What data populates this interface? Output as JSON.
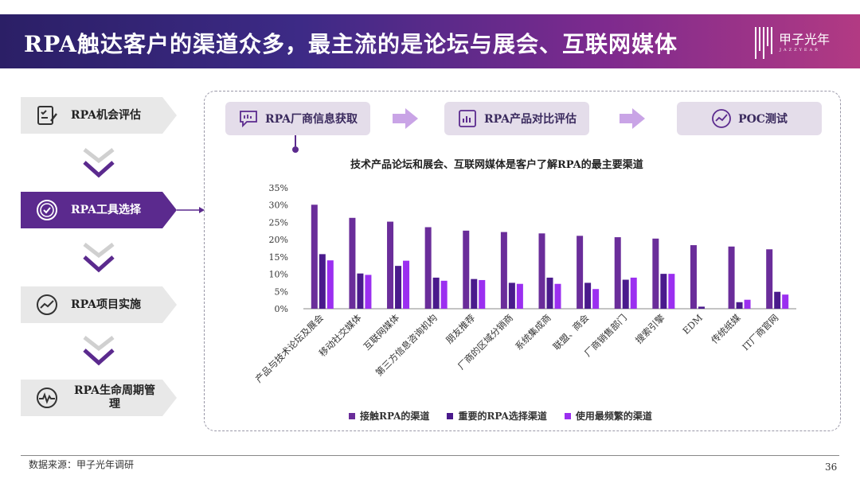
{
  "header": {
    "title": "RPA触达客户的渠道众多，最主流的是论坛与展会、互联网媒体",
    "logo_text": "甲子光年",
    "logo_sub": "JAZZYEAR"
  },
  "steps": [
    {
      "label": "RPA机会评估",
      "icon": "checklist-edit-icon",
      "active": false
    },
    {
      "label": "RPA工具选择",
      "icon": "check-circle-icon",
      "active": true
    },
    {
      "label": "RPA项目实施",
      "icon": "trend-line-icon",
      "active": false
    },
    {
      "label": "RPA生命周期管理",
      "icon": "heartbeat-icon",
      "active": false
    }
  ],
  "flow": [
    {
      "label": "RPA厂商信息获取",
      "icon": "chat-list-icon"
    },
    {
      "label": "RPA产品对比评估",
      "icon": "bar-report-icon"
    },
    {
      "label": "POC测试",
      "icon": "trend-circle-icon"
    }
  ],
  "colors": {
    "series1": "#6a2d9a",
    "series2": "#4a1a8c",
    "series3": "#9b2ff0",
    "accent": "#5b2a8e",
    "flow_tile": "#e4ddea",
    "flow_arrow": "#c9a4e6"
  },
  "chart_data": {
    "type": "bar",
    "title": "技术产品论坛和展会、互联网媒体是客户了解RPA的最主要渠道",
    "categories": [
      "产品与技术论坛及展会",
      "移动社交媒体",
      "互联网媒体",
      "第三方信息咨询机构",
      "朋友推荐",
      "厂商的区域分销商",
      "系统集成商",
      "联盟、商会",
      "厂商销售部门",
      "搜索引擎",
      "EDM",
      "传统纸媒",
      "IT厂商官网"
    ],
    "series": [
      {
        "name": "接触RPA的渠道",
        "values": [
          30.1,
          26.3,
          25.2,
          23.6,
          22.6,
          22.2,
          21.8,
          21.1,
          20.7,
          20.3,
          18.4,
          18.0,
          17.2
        ]
      },
      {
        "name": "重要的RPA选择渠道",
        "values": [
          15.8,
          10.2,
          12.4,
          9.0,
          8.6,
          7.5,
          9.0,
          7.5,
          8.4,
          10.1,
          0.6,
          1.9,
          4.9
        ]
      },
      {
        "name": "使用最频繁的渠道",
        "values": [
          14.0,
          9.8,
          13.9,
          8.1,
          8.3,
          7.2,
          7.2,
          5.7,
          9.0,
          10.1,
          0,
          2.6,
          4.1
        ]
      }
    ],
    "yticks": [
      "0%",
      "5%",
      "10%",
      "15%",
      "20%",
      "25%",
      "30%",
      "35%"
    ],
    "ylim": [
      0,
      35
    ],
    "legend_position": "bottom"
  },
  "footer": {
    "source": "数据来源：甲子光年调研",
    "page": "36"
  }
}
